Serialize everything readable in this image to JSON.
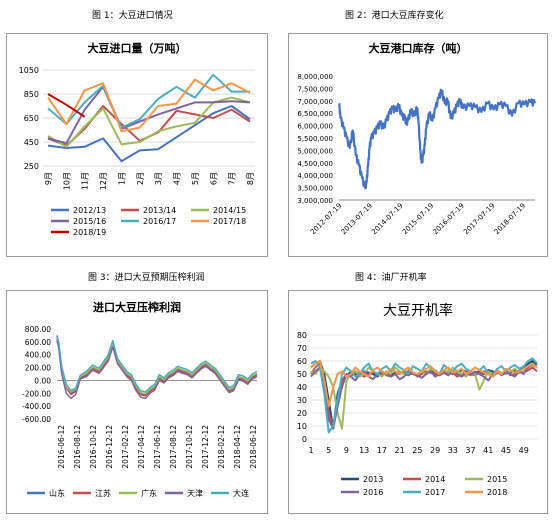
{
  "captions": [
    "图 1：大豆进口情况",
    "图 2：港口大豆库存变化",
    "图 3：进口大豆预期压榨利润",
    "图 4：油厂开机率"
  ],
  "chart_data": [
    {
      "type": "line",
      "title": "大豆进口量（万吨）",
      "categories": [
        "9月",
        "10月",
        "11月",
        "12月",
        "1月",
        "2月",
        "3月",
        "4月",
        "5月",
        "6月",
        "7月",
        "8月"
      ],
      "ylim": [
        250,
        1050
      ],
      "yticks": [
        250,
        450,
        650,
        850,
        1050
      ],
      "legend": "bottom",
      "series": [
        {
          "name": "2012/13",
          "color": "#4472c4",
          "values": [
            420,
            400,
            410,
            480,
            290,
            380,
            390,
            490,
            590,
            690,
            750,
            640
          ]
        },
        {
          "name": "2013/14",
          "color": "#c0504d",
          "values": [
            480,
            420,
            560,
            750,
            600,
            460,
            530,
            710,
            680,
            650,
            720,
            620
          ]
        },
        {
          "name": "2014/15",
          "color": "#9bbb59",
          "values": [
            500,
            410,
            580,
            730,
            430,
            450,
            540,
            580,
            610,
            780,
            820,
            780
          ]
        },
        {
          "name": "2015/16",
          "color": "#8064a2",
          "values": [
            480,
            440,
            720,
            910,
            560,
            620,
            680,
            730,
            780,
            780,
            790,
            780
          ]
        },
        {
          "name": "2016/17",
          "color": "#4bacc6",
          "values": [
            730,
            600,
            780,
            920,
            570,
            640,
            810,
            910,
            820,
            1010,
            870,
            870
          ]
        },
        {
          "name": "2017/18",
          "color": "#f79646",
          "values": [
            820,
            600,
            880,
            940,
            540,
            570,
            750,
            770,
            970,
            880,
            940,
            860
          ]
        },
        {
          "name": "2018/19",
          "color": "#c00000",
          "values": [
            850,
            760,
            660,
            null,
            null,
            null,
            null,
            null,
            null,
            null,
            null,
            null
          ]
        }
      ]
    },
    {
      "type": "line",
      "title": "大豆港口库存（吨）",
      "ylim": [
        3000000,
        8000000
      ],
      "yticks": [
        "3,000,000",
        "3,500,000",
        "4,000,000",
        "4,500,000",
        "5,000,000",
        "5,500,000",
        "6,000,000",
        "6,500,000",
        "7,000,000",
        "7,500,000",
        "8,000,000"
      ],
      "xticks": [
        "2012-07-19",
        "2013-07-19",
        "2014-07-19",
        "2015-07-19",
        "2016-07-19",
        "2017-07-19",
        "2018-07-19"
      ],
      "series": [
        {
          "color": "#4472c4",
          "x": [
            2012.55,
            2012.6,
            2012.7,
            2012.8,
            2012.9,
            2013.0,
            2013.1,
            2013.2,
            2013.3,
            2013.4,
            2013.45,
            2013.5,
            2013.55,
            2013.6,
            2013.7,
            2013.8,
            2013.9,
            2014.0,
            2014.1,
            2014.2,
            2014.3,
            2014.4,
            2014.5,
            2014.6,
            2014.7,
            2014.75,
            2014.8,
            2014.9,
            2015.0,
            2015.1,
            2015.15,
            2015.2,
            2015.25,
            2015.3,
            2015.35,
            2015.4,
            2015.5,
            2015.6,
            2015.7,
            2015.8,
            2015.9,
            2016.0,
            2016.1,
            2016.2,
            2016.3,
            2016.4,
            2016.5,
            2016.6,
            2016.8,
            2017.0,
            2017.2,
            2017.4,
            2017.6,
            2017.8,
            2018.0,
            2018.2,
            2018.4,
            2018.6,
            2018.8,
            2018.95
          ],
          "y": [
            6900000,
            6300000,
            5900000,
            5500000,
            5100000,
            5800000,
            4800000,
            4400000,
            3900000,
            3500000,
            3700000,
            4400000,
            5100000,
            5500000,
            5700000,
            5900000,
            6100000,
            5900000,
            6200000,
            6500000,
            6700000,
            6600000,
            6800000,
            6400000,
            6300000,
            6100000,
            6200000,
            6600000,
            6400000,
            6700000,
            6100000,
            5000000,
            4500000,
            4800000,
            5200000,
            5900000,
            6500000,
            6200000,
            6700000,
            7100000,
            7400000,
            6900000,
            7000000,
            6300000,
            6500000,
            6800000,
            7000000,
            6700000,
            6800000,
            6750000,
            6550000,
            6900000,
            6650000,
            6850000,
            6800000,
            6400000,
            6900000,
            6850000,
            6950000,
            6900000
          ]
        }
      ]
    },
    {
      "type": "line",
      "title": "进口大豆压榨利润",
      "ylim": [
        -600,
        800
      ],
      "yticks": [
        "800.00",
        "600.00",
        "400.00",
        "200.00",
        "0.00",
        "-200.00",
        "-400.00",
        "-600.00"
      ],
      "xticks": [
        "2016-06-12",
        "2016-08-12",
        "2016-10-12",
        "2016-12-12",
        "2017-02-12",
        "2017-04-12",
        "2017-06-12",
        "2017-08-12",
        "2017-10-12",
        "2017-12-12",
        "2018-02-12",
        "2018-04-12",
        "2018-06-12"
      ],
      "legend": "bottom",
      "t": [
        0,
        0.1,
        0.3,
        0.6,
        0.9,
        1.2,
        1.5,
        1.9,
        2.3,
        2.7,
        3.0,
        3.3,
        3.6,
        3.9,
        4.2,
        4.5,
        4.8,
        5.1,
        5.4,
        5.7,
        6.0,
        6.3,
        6.6,
        6.9,
        7.2,
        7.5,
        7.8,
        8.1,
        8.4,
        8.7,
        9.0,
        9.3,
        9.6,
        9.9,
        10.2,
        10.5,
        10.8,
        11.1,
        11.4,
        11.7,
        12.0,
        12.3,
        12.6,
        12.9
      ],
      "series": [
        {
          "name": "山东",
          "color": "#4472c4",
          "values": [
            700,
            600,
            200,
            -100,
            -200,
            -150,
            50,
            100,
            200,
            150,
            250,
            350,
            600,
            300,
            200,
            100,
            50,
            -100,
            -200,
            -220,
            -150,
            -100,
            50,
            0,
            80,
            120,
            180,
            150,
            130,
            80,
            150,
            220,
            260,
            200,
            150,
            50,
            -50,
            -150,
            -120,
            50,
            30,
            -20,
            60,
            100
          ]
        },
        {
          "name": "江苏",
          "color": "#c0504d",
          "values": [
            650,
            580,
            180,
            -120,
            -220,
            -170,
            40,
            80,
            180,
            130,
            230,
            330,
            560,
            280,
            180,
            80,
            30,
            -120,
            -220,
            -240,
            -170,
            -120,
            30,
            -20,
            60,
            100,
            160,
            130,
            110,
            60,
            130,
            200,
            240,
            180,
            130,
            30,
            -70,
            -170,
            -140,
            30,
            10,
            -40,
            40,
            80
          ]
        },
        {
          "name": "广东",
          "color": "#9bbb59",
          "values": [
            600,
            550,
            150,
            -100,
            -180,
            -140,
            60,
            110,
            210,
            160,
            260,
            360,
            580,
            310,
            210,
            110,
            60,
            -90,
            -190,
            -210,
            -140,
            -90,
            60,
            10,
            90,
            130,
            190,
            160,
            140,
            90,
            160,
            230,
            270,
            210,
            160,
            60,
            -40,
            -140,
            -110,
            60,
            40,
            -10,
            70,
            110
          ]
        },
        {
          "name": "天津",
          "color": "#8064a2",
          "values": [
            620,
            520,
            100,
            -200,
            -280,
            -220,
            20,
            60,
            160,
            110,
            200,
            300,
            520,
            260,
            160,
            60,
            0,
            -160,
            -260,
            -280,
            -200,
            -150,
            0,
            -40,
            40,
            80,
            140,
            110,
            90,
            40,
            110,
            180,
            220,
            160,
            110,
            10,
            -90,
            -190,
            -160,
            10,
            -10,
            -60,
            20,
            60
          ]
        },
        {
          "name": "大连",
          "color": "#4bacc6",
          "values": [
            680,
            600,
            220,
            -60,
            -160,
            -120,
            80,
            140,
            240,
            190,
            290,
            400,
            620,
            340,
            240,
            140,
            90,
            -60,
            -160,
            -180,
            -110,
            -60,
            90,
            40,
            120,
            160,
            220,
            190,
            170,
            120,
            190,
            260,
            300,
            240,
            190,
            90,
            -10,
            -110,
            -80,
            90,
            70,
            20,
            100,
            140
          ]
        }
      ]
    },
    {
      "type": "line",
      "title": "大豆开机率",
      "ylim": [
        0,
        80
      ],
      "yticks": [
        "0",
        "10",
        "20",
        "30",
        "40",
        "50",
        "60",
        "70",
        "80"
      ],
      "xticks": [
        "1",
        "5",
        "9",
        "13",
        "17",
        "21",
        "25",
        "29",
        "33",
        "37",
        "41",
        "45",
        "49"
      ],
      "legend": "bottom",
      "x": [
        1,
        2,
        3,
        4,
        5,
        6,
        7,
        8,
        9,
        10,
        11,
        12,
        13,
        14,
        15,
        16,
        17,
        18,
        19,
        20,
        21,
        22,
        23,
        24,
        25,
        26,
        27,
        28,
        29,
        30,
        31,
        32,
        33,
        34,
        35,
        36,
        37,
        38,
        39,
        40,
        41,
        42,
        43,
        44,
        45,
        46,
        47,
        48,
        49,
        50,
        51,
        52
      ],
      "series": [
        {
          "name": "2013",
          "color": "#1f4e79",
          "values": [
            55,
            58,
            60,
            50,
            30,
            8,
            35,
            45,
            48,
            52,
            50,
            49,
            52,
            51,
            50,
            48,
            52,
            50,
            49,
            51,
            50,
            52,
            51,
            50,
            49,
            52,
            51,
            53,
            50,
            49,
            51,
            52,
            50,
            51,
            53,
            52,
            50,
            51,
            52,
            50,
            53,
            52,
            51,
            50,
            52,
            51,
            53,
            52,
            55,
            58,
            60,
            57
          ]
        },
        {
          "name": "2014",
          "color": "#c0504d",
          "values": [
            50,
            55,
            58,
            45,
            20,
            10,
            30,
            45,
            50,
            48,
            52,
            50,
            48,
            50,
            52,
            49,
            50,
            51,
            48,
            50,
            52,
            50,
            49,
            51,
            48,
            50,
            52,
            51,
            50,
            49,
            52,
            50,
            51,
            48,
            50,
            52,
            50,
            49,
            51,
            52,
            50,
            48,
            51,
            50,
            52,
            49,
            50,
            52,
            51,
            53,
            55,
            52
          ]
        },
        {
          "name": "2015",
          "color": "#9bbb59",
          "values": [
            52,
            50,
            55,
            52,
            48,
            40,
            20,
            8,
            45,
            50,
            52,
            48,
            50,
            55,
            52,
            50,
            48,
            52,
            50,
            55,
            52,
            50,
            53,
            51,
            49,
            52,
            50,
            54,
            52,
            50,
            53,
            51,
            55,
            52,
            50,
            48,
            52,
            50,
            38,
            45,
            52,
            50,
            53,
            51,
            50,
            52,
            54,
            51,
            52,
            55,
            57,
            55
          ]
        },
        {
          "name": "2016",
          "color": "#8064a2",
          "values": [
            48,
            52,
            55,
            40,
            15,
            8,
            25,
            40,
            50,
            48,
            45,
            50,
            52,
            48,
            46,
            50,
            52,
            49,
            48,
            50,
            46,
            48,
            52,
            50,
            49,
            47,
            50,
            52,
            48,
            50,
            51,
            49,
            52,
            50,
            48,
            51,
            49,
            52,
            50,
            48,
            45,
            50,
            52,
            49,
            51,
            50,
            48,
            52,
            50,
            55,
            58,
            55
          ]
        },
        {
          "name": "2017",
          "color": "#4bacc6",
          "values": [
            58,
            60,
            55,
            35,
            5,
            10,
            30,
            50,
            55,
            52,
            48,
            50,
            55,
            58,
            52,
            50,
            54,
            56,
            52,
            58,
            55,
            53,
            50,
            56,
            54,
            52,
            58,
            55,
            53,
            50,
            57,
            54,
            52,
            56,
            58,
            54,
            52,
            55,
            53,
            56,
            50,
            48,
            54,
            56,
            52,
            55,
            57,
            54,
            56,
            60,
            62,
            58
          ]
        },
        {
          "name": "2018",
          "color": "#f79646",
          "values": [
            55,
            58,
            60,
            45,
            25,
            40,
            50,
            52,
            48,
            50,
            55,
            52,
            50,
            48,
            53,
            55,
            52,
            50,
            54,
            52,
            50,
            53,
            55,
            51,
            50,
            52,
            54,
            56,
            52,
            50,
            53,
            55,
            51,
            52,
            54,
            50,
            52,
            55,
            53,
            51,
            50,
            48,
            52,
            50,
            54,
            53,
            51,
            52,
            54,
            56,
            58,
            55
          ]
        }
      ]
    }
  ]
}
